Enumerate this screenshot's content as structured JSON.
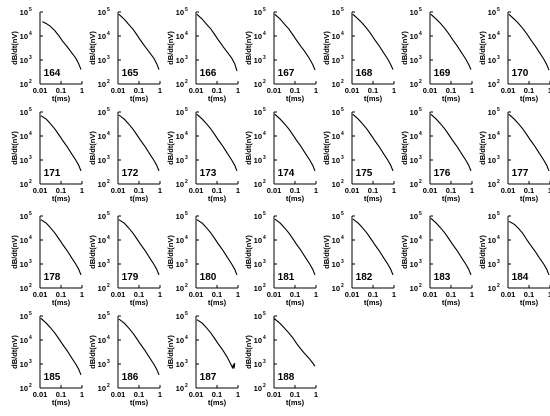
{
  "chart_data": {
    "type": "line",
    "xlabel": "t(ms)",
    "ylabel": "dB/dt(nV)",
    "xscale": "log",
    "yscale": "log",
    "xlim": [
      0.01,
      1
    ],
    "ylim": [
      100,
      100000
    ],
    "xticks": [
      "0.01",
      "0.1",
      "1"
    ],
    "yticks": [
      {
        "base": "10",
        "exp": "2"
      },
      {
        "base": "10",
        "exp": "3"
      },
      {
        "base": "10",
        "exp": "4"
      },
      {
        "base": "10",
        "exp": "5"
      }
    ],
    "grid": false,
    "line_color": "#000000",
    "panels": [
      {
        "label": "164",
        "x": [
          0.013,
          0.02,
          0.03,
          0.05,
          0.08,
          0.12,
          0.2,
          0.3,
          0.5,
          0.7,
          0.9
        ],
        "y": [
          40000,
          33000,
          26000,
          17000,
          10000,
          6000,
          3500,
          2200,
          1200,
          700,
          400
        ]
      },
      {
        "label": "165",
        "x": [
          0.011,
          0.02,
          0.03,
          0.05,
          0.08,
          0.12,
          0.2,
          0.3,
          0.5,
          0.7,
          0.9
        ],
        "y": [
          80000,
          50000,
          33000,
          20000,
          11000,
          6500,
          3500,
          2200,
          1200,
          700,
          400
        ]
      },
      {
        "label": "166",
        "x": [
          0.011,
          0.02,
          0.03,
          0.05,
          0.08,
          0.12,
          0.2,
          0.3,
          0.5,
          0.7,
          0.9
        ],
        "y": [
          80000,
          50000,
          33000,
          20000,
          11000,
          6500,
          3500,
          2200,
          1200,
          700,
          350
        ]
      },
      {
        "label": "167",
        "x": [
          0.011,
          0.02,
          0.03,
          0.05,
          0.08,
          0.12,
          0.2,
          0.3,
          0.5,
          0.7,
          0.9
        ],
        "y": [
          80000,
          50000,
          33000,
          20000,
          11000,
          6500,
          3500,
          2200,
          1100,
          650,
          380
        ]
      },
      {
        "label": "168",
        "x": [
          0.011,
          0.02,
          0.03,
          0.05,
          0.08,
          0.12,
          0.2,
          0.3,
          0.5,
          0.7,
          0.9
        ],
        "y": [
          80000,
          50000,
          35000,
          21000,
          12000,
          7000,
          3800,
          2200,
          1100,
          650,
          400
        ]
      },
      {
        "label": "169",
        "x": [
          0.011,
          0.02,
          0.03,
          0.05,
          0.08,
          0.12,
          0.2,
          0.3,
          0.5,
          0.7,
          0.9
        ],
        "y": [
          80000,
          50000,
          35000,
          21000,
          12000,
          7000,
          3800,
          2200,
          1100,
          650,
          400
        ]
      },
      {
        "label": "170",
        "x": [
          0.011,
          0.02,
          0.03,
          0.05,
          0.08,
          0.12,
          0.2,
          0.3,
          0.5,
          0.7,
          0.9
        ],
        "y": [
          80000,
          50000,
          35000,
          21000,
          12000,
          7000,
          3800,
          2200,
          1100,
          650,
          380
        ]
      },
      {
        "label": "171",
        "x": [
          0.011,
          0.02,
          0.03,
          0.05,
          0.08,
          0.12,
          0.2,
          0.3,
          0.5,
          0.7,
          0.9
        ],
        "y": [
          70000,
          50000,
          34000,
          20000,
          11000,
          6500,
          3500,
          2000,
          1000,
          600,
          350
        ]
      },
      {
        "label": "172",
        "x": [
          0.011,
          0.02,
          0.03,
          0.05,
          0.08,
          0.12,
          0.2,
          0.3,
          0.5,
          0.7,
          0.9
        ],
        "y": [
          75000,
          50000,
          34000,
          20000,
          11000,
          6500,
          3500,
          2000,
          1000,
          600,
          350
        ]
      },
      {
        "label": "173",
        "x": [
          0.011,
          0.02,
          0.03,
          0.05,
          0.08,
          0.12,
          0.2,
          0.3,
          0.5,
          0.7,
          0.9
        ],
        "y": [
          80000,
          50000,
          34000,
          20000,
          11000,
          6500,
          3500,
          2000,
          1000,
          600,
          350
        ]
      },
      {
        "label": "174",
        "x": [
          0.011,
          0.02,
          0.03,
          0.05,
          0.08,
          0.12,
          0.2,
          0.3,
          0.5,
          0.7,
          0.9
        ],
        "y": [
          80000,
          50000,
          34000,
          20000,
          11000,
          6500,
          3500,
          2000,
          1000,
          600,
          350
        ]
      },
      {
        "label": "175",
        "x": [
          0.011,
          0.02,
          0.03,
          0.05,
          0.08,
          0.12,
          0.2,
          0.3,
          0.5,
          0.7,
          0.9
        ],
        "y": [
          80000,
          50000,
          34000,
          20000,
          11000,
          6500,
          3500,
          2000,
          1000,
          600,
          350
        ]
      },
      {
        "label": "176",
        "x": [
          0.011,
          0.02,
          0.03,
          0.05,
          0.08,
          0.12,
          0.2,
          0.3,
          0.5,
          0.7,
          0.9
        ],
        "y": [
          80000,
          50000,
          34000,
          20000,
          11000,
          6500,
          3500,
          2000,
          1000,
          600,
          350
        ]
      },
      {
        "label": "177",
        "x": [
          0.011,
          0.02,
          0.03,
          0.05,
          0.08,
          0.12,
          0.2,
          0.3,
          0.5,
          0.7,
          0.9
        ],
        "y": [
          80000,
          50000,
          34000,
          20000,
          11000,
          6500,
          3500,
          2000,
          1000,
          600,
          350
        ]
      },
      {
        "label": "178",
        "x": [
          0.011,
          0.02,
          0.03,
          0.05,
          0.08,
          0.12,
          0.2,
          0.3,
          0.5,
          0.7,
          0.9
        ],
        "y": [
          70000,
          50000,
          34000,
          20000,
          11000,
          6500,
          3500,
          2000,
          1000,
          600,
          350
        ]
      },
      {
        "label": "179",
        "x": [
          0.011,
          0.02,
          0.03,
          0.05,
          0.08,
          0.12,
          0.2,
          0.3,
          0.5,
          0.7,
          0.9
        ],
        "y": [
          70000,
          50000,
          34000,
          20000,
          11000,
          6500,
          3500,
          2000,
          1000,
          600,
          350
        ]
      },
      {
        "label": "180",
        "x": [
          0.011,
          0.02,
          0.03,
          0.05,
          0.08,
          0.12,
          0.2,
          0.3,
          0.5,
          0.7,
          0.9
        ],
        "y": [
          70000,
          50000,
          34000,
          20000,
          11000,
          6500,
          3500,
          2000,
          1000,
          600,
          350
        ]
      },
      {
        "label": "181",
        "x": [
          0.011,
          0.02,
          0.03,
          0.05,
          0.08,
          0.12,
          0.2,
          0.3,
          0.5,
          0.7,
          0.9
        ],
        "y": [
          75000,
          50000,
          34000,
          20000,
          11000,
          6500,
          3500,
          2000,
          1000,
          600,
          350
        ]
      },
      {
        "label": "182",
        "x": [
          0.011,
          0.02,
          0.03,
          0.05,
          0.08,
          0.12,
          0.2,
          0.3,
          0.5,
          0.7,
          0.9
        ],
        "y": [
          75000,
          50000,
          34000,
          20000,
          11000,
          6500,
          3500,
          2000,
          1000,
          600,
          350
        ]
      },
      {
        "label": "183",
        "x": [
          0.011,
          0.02,
          0.03,
          0.05,
          0.08,
          0.12,
          0.2,
          0.3,
          0.5,
          0.7,
          0.9
        ],
        "y": [
          80000,
          50000,
          34000,
          20000,
          11000,
          6500,
          3500,
          2000,
          1000,
          600,
          350
        ]
      },
      {
        "label": "184",
        "x": [
          0.011,
          0.02,
          0.03,
          0.05,
          0.08,
          0.12,
          0.2,
          0.3,
          0.5,
          0.7,
          0.9
        ],
        "y": [
          60000,
          45000,
          32000,
          19000,
          10000,
          6000,
          3300,
          1900,
          1000,
          600,
          350
        ]
      },
      {
        "label": "185",
        "x": [
          0.011,
          0.02,
          0.03,
          0.05,
          0.08,
          0.12,
          0.2,
          0.3,
          0.5,
          0.7,
          0.9
        ],
        "y": [
          80000,
          50000,
          34000,
          20000,
          11000,
          6500,
          3500,
          2000,
          1000,
          600,
          350
        ]
      },
      {
        "label": "186",
        "x": [
          0.011,
          0.02,
          0.03,
          0.05,
          0.08,
          0.12,
          0.2,
          0.3,
          0.5,
          0.7,
          0.9
        ],
        "y": [
          75000,
          50000,
          34000,
          20000,
          11000,
          6500,
          3500,
          2000,
          1000,
          600,
          350
        ]
      },
      {
        "label": "187",
        "x": [
          0.011,
          0.02,
          0.03,
          0.05,
          0.08,
          0.12,
          0.2,
          0.3,
          0.45,
          0.55,
          0.6,
          0.65,
          0.7
        ],
        "y": [
          70000,
          50000,
          34000,
          20000,
          11000,
          6500,
          3500,
          2000,
          1000,
          700,
          900,
          650,
          1100
        ]
      },
      {
        "label": "188",
        "x": [
          0.01,
          0.02,
          0.03,
          0.05,
          0.08,
          0.12,
          0.2,
          0.3,
          0.5,
          0.7,
          0.9
        ],
        "y": [
          80000,
          48000,
          33000,
          20000,
          12000,
          7000,
          4000,
          2600,
          1600,
          1100,
          800
        ]
      }
    ]
  }
}
